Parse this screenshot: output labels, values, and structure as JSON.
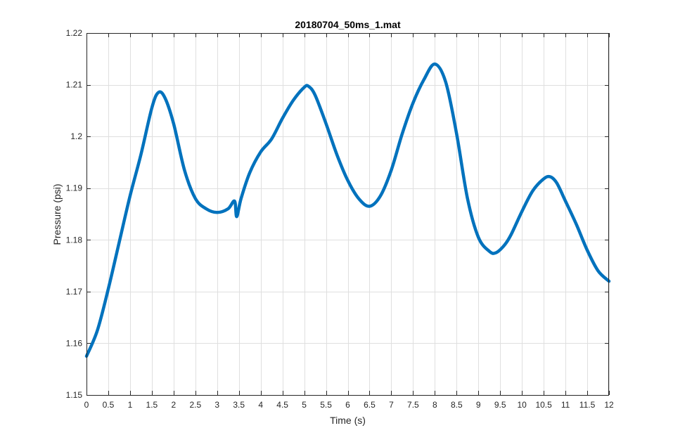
{
  "chart_data": {
    "type": "line",
    "title": "20180704_50ms_1.mat",
    "xlabel": "Time (s)",
    "ylabel": "Pressure (psi)",
    "xlim": [
      0,
      12
    ],
    "ylim": [
      1.15,
      1.22
    ],
    "xticks": [
      0,
      0.5,
      1,
      1.5,
      2,
      2.5,
      3,
      3.5,
      4,
      4.5,
      5,
      5.5,
      6,
      6.5,
      7,
      7.5,
      8,
      8.5,
      9,
      9.5,
      10,
      10.5,
      11,
      11.5,
      12
    ],
    "xtick_labels": [
      "0",
      "0.5",
      "1",
      "1.5",
      "2",
      "2.5",
      "3",
      "3.5",
      "4",
      "4.5",
      "5",
      "5.5",
      "6",
      "6.5",
      "7",
      "7.5",
      "8",
      "8.5",
      "9",
      "9.5",
      "10",
      "10.5",
      "11",
      "11.5",
      "12"
    ],
    "yticks": [
      1.15,
      1.16,
      1.17,
      1.18,
      1.19,
      1.2,
      1.21,
      1.22
    ],
    "ytick_labels": [
      "1.15",
      "1.16",
      "1.17",
      "1.18",
      "1.19",
      "1.2",
      "1.21",
      "1.22"
    ],
    "grid": true,
    "series": [
      {
        "color": "#0072BD",
        "x": [
          0,
          0.25,
          0.5,
          0.75,
          1.0,
          1.25,
          1.5,
          1.65,
          1.8,
          2.0,
          2.25,
          2.5,
          2.75,
          3.0,
          3.25,
          3.4,
          3.45,
          3.55,
          3.75,
          4.0,
          4.25,
          4.5,
          4.75,
          5.0,
          5.1,
          5.25,
          5.5,
          5.75,
          6.0,
          6.25,
          6.5,
          6.75,
          7.0,
          7.25,
          7.5,
          7.75,
          8.0,
          8.25,
          8.5,
          8.75,
          9.0,
          9.25,
          9.4,
          9.6,
          9.75,
          10.0,
          10.25,
          10.5,
          10.65,
          10.8,
          11.0,
          11.25,
          11.5,
          11.75,
          12.0
        ],
        "y": [
          1.1575,
          1.1625,
          1.1705,
          1.1795,
          1.1885,
          1.1965,
          1.2055,
          1.2085,
          1.2075,
          1.2025,
          1.1935,
          1.188,
          1.186,
          1.1853,
          1.186,
          1.1875,
          1.1845,
          1.188,
          1.193,
          1.197,
          1.1995,
          1.2035,
          1.207,
          1.2095,
          1.2097,
          1.208,
          1.2025,
          1.1965,
          1.1915,
          1.188,
          1.1865,
          1.1885,
          1.1935,
          1.2005,
          1.2065,
          1.211,
          1.214,
          1.2105,
          1.2005,
          1.188,
          1.1805,
          1.1778,
          1.1775,
          1.179,
          1.181,
          1.1855,
          1.1895,
          1.1918,
          1.1922,
          1.191,
          1.1875,
          1.183,
          1.178,
          1.174,
          1.172
        ]
      }
    ]
  }
}
